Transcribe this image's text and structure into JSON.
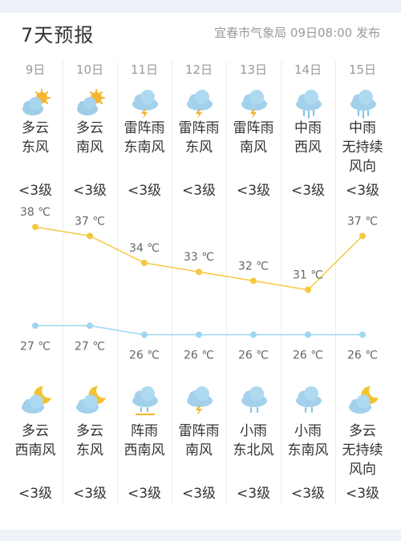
{
  "header": {
    "title": "7天预报",
    "meta": "宜春市气象局 09日08:00 发布"
  },
  "days": [
    {
      "date": "9日",
      "day_icon": "partly-cloudy-sun-icon",
      "day_weather": "多云",
      "day_wind": "东风",
      "day_wind_level": "<3级",
      "night_icon": "cloudy-moon-icon",
      "night_weather": "多云",
      "night_wind": "西南风",
      "night_wind_level": "<3级",
      "high": "38 ℃",
      "low": "27 ℃"
    },
    {
      "date": "10日",
      "day_icon": "partly-cloudy-sun-icon",
      "day_weather": "多云",
      "day_wind": "南风",
      "day_wind_level": "<3级",
      "night_icon": "cloudy-moon-icon",
      "night_weather": "多云",
      "night_wind": "东风",
      "night_wind_level": "<3级",
      "high": "37 ℃",
      "low": "27 ℃"
    },
    {
      "date": "11日",
      "day_icon": "thunder-shower-icon",
      "day_weather": "雷阵雨",
      "day_wind": "东南风",
      "day_wind_level": "<3级",
      "night_icon": "shower-icon",
      "night_weather": "阵雨",
      "night_wind": "西南风",
      "night_wind_level": "<3级",
      "high": "34 ℃",
      "low": "26 ℃"
    },
    {
      "date": "12日",
      "day_icon": "thunder-shower-icon",
      "day_weather": "雷阵雨",
      "day_wind": "东风",
      "day_wind_level": "<3级",
      "night_icon": "thunder-shower-icon",
      "night_weather": "雷阵雨",
      "night_wind": "南风",
      "night_wind_level": "<3级",
      "high": "33 ℃",
      "low": "26 ℃"
    },
    {
      "date": "13日",
      "day_icon": "thunder-shower-icon",
      "day_weather": "雷阵雨",
      "day_wind": "南风",
      "day_wind_level": "<3级",
      "night_icon": "light-rain-icon",
      "night_weather": "小雨",
      "night_wind": "东北风",
      "night_wind_level": "<3级",
      "high": "32 ℃",
      "low": "26 ℃"
    },
    {
      "date": "14日",
      "day_icon": "moderate-rain-icon",
      "day_weather": "中雨",
      "day_wind": "西风",
      "day_wind_level": "<3级",
      "night_icon": "light-rain-icon",
      "night_weather": "小雨",
      "night_wind": "东南风",
      "night_wind_level": "<3级",
      "high": "31 ℃",
      "low": "26 ℃"
    },
    {
      "date": "15日",
      "day_icon": "moderate-rain-icon",
      "day_weather": "中雨",
      "day_wind": "无持续风向",
      "day_wind_level": "<3级",
      "night_icon": "cloudy-moon-icon",
      "night_weather": "多云",
      "night_wind": "无持续风向",
      "night_wind_level": "<3级",
      "high": "37 ℃",
      "low": "26 ℃"
    }
  ],
  "chart_data": {
    "type": "line",
    "categories": [
      "9日",
      "10日",
      "11日",
      "12日",
      "13日",
      "14日",
      "15日"
    ],
    "series": [
      {
        "values": [
          38,
          37,
          34,
          33,
          32,
          31,
          37
        ],
        "color": "#f5c842"
      },
      {
        "values": [
          27,
          27,
          26,
          26,
          26,
          26,
          26
        ],
        "color": "#9dd6ee"
      }
    ]
  }
}
